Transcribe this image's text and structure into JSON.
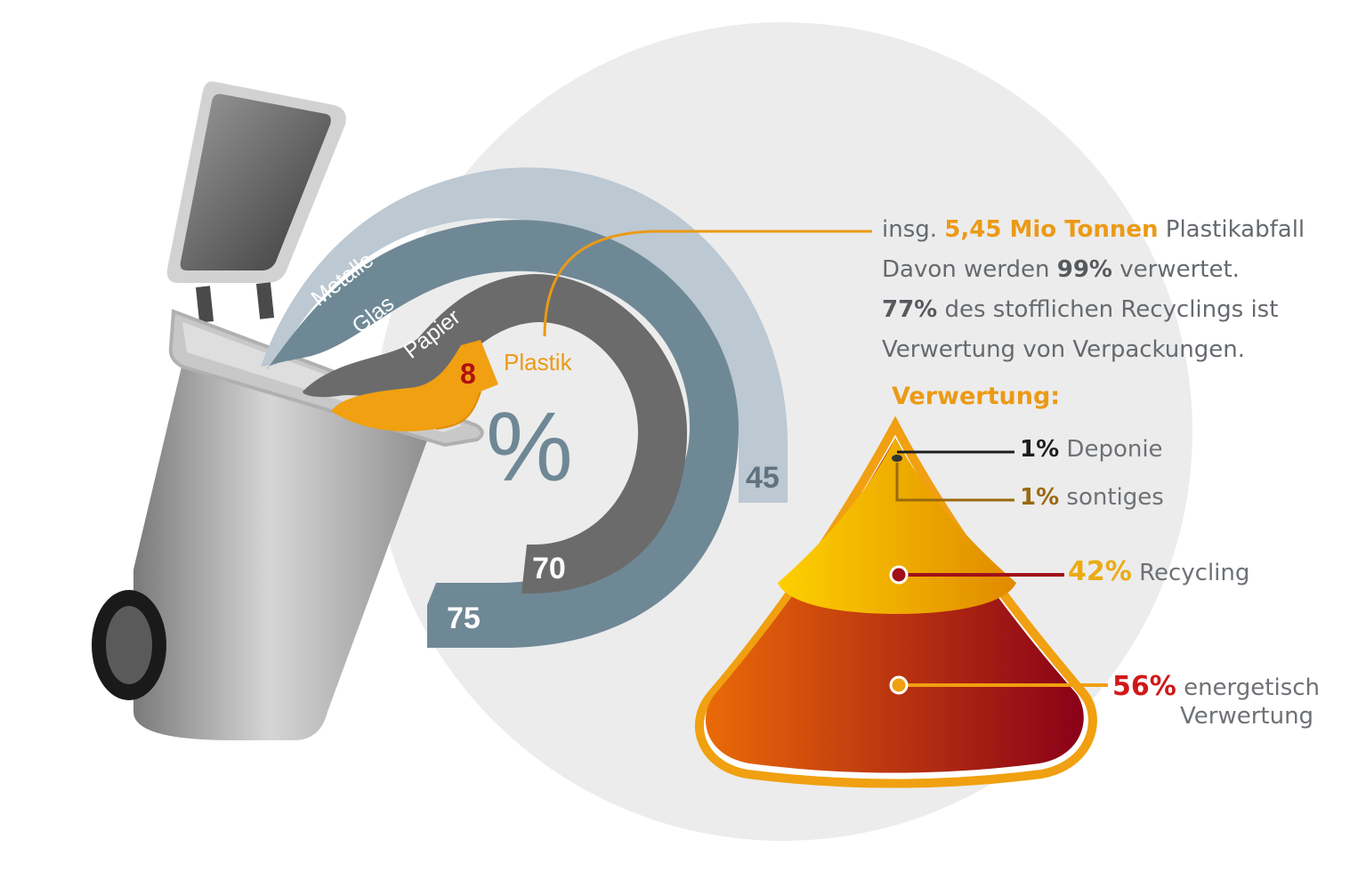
{
  "chart_data": {
    "type": "radial-bar",
    "unit": "%",
    "series": [
      {
        "name": "Metalle",
        "value": 45,
        "color": "#bcc8d2"
      },
      {
        "name": "Glas",
        "value": 75,
        "color": "#6f8896"
      },
      {
        "name": "Papier",
        "value": 70,
        "color": "#6b6b6b"
      },
      {
        "name": "Plastik",
        "value": 8,
        "color": "#f0a010"
      }
    ]
  },
  "info": {
    "line1_pre": "insg.",
    "line1_bold": "5,45 Mio Tonnen",
    "line1_post": "Plastikabfall",
    "line2_pre": "Davon werden",
    "line2_bold": "99%",
    "line2_post": "verwertet.",
    "line3_bold": "77%",
    "line3_post": "des stofflichen Recyclings ist",
    "line4": "Verwertung von Verpackungen."
  },
  "verwertung": {
    "heading": "Verwertung:",
    "items": [
      {
        "value": "1%",
        "label": "Deponie",
        "color": "#1e1e1e"
      },
      {
        "value": "1%",
        "label": "sontiges",
        "color": "#9a6a0e"
      },
      {
        "value": "42%",
        "label": "Recycling",
        "color": "#ebab14"
      },
      {
        "value": "56%",
        "label_line1": "energetisch",
        "label_line2": "Verwertung",
        "color": "#d01818"
      }
    ]
  },
  "colors": {
    "accent": "#eb9a16",
    "background_circle": "#ececec"
  }
}
